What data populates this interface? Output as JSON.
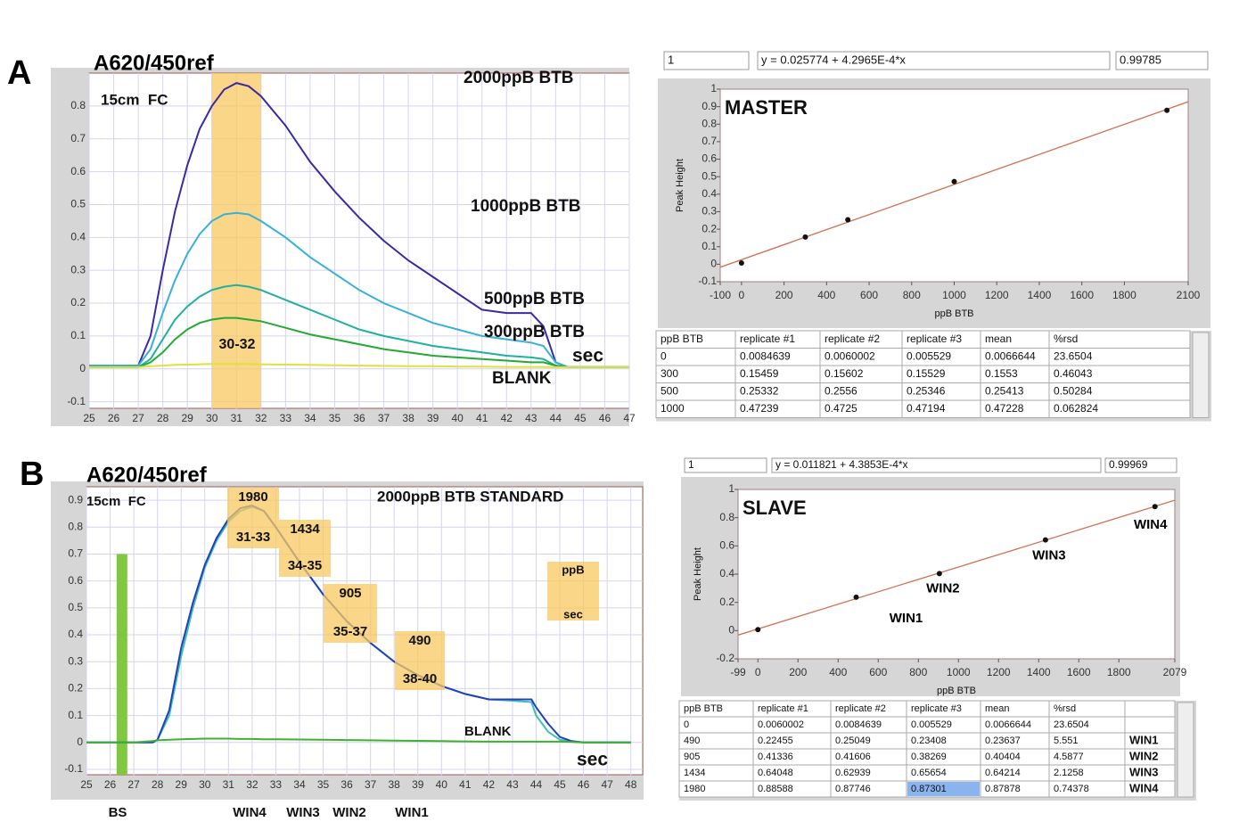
{
  "panel_labels": [
    "A",
    "B"
  ],
  "chart_data": [
    {
      "type": "line",
      "title": "A620/450ref",
      "annotations": [
        "15cm  FC",
        "sec"
      ],
      "x": [
        25,
        26,
        27,
        27.5,
        28,
        28.5,
        29,
        29.5,
        30,
        30.5,
        31,
        31.5,
        32,
        33,
        34,
        35,
        36,
        37,
        38,
        39,
        40,
        41,
        42,
        43,
        43.5,
        44,
        44.5,
        45,
        46,
        47
      ],
      "series": [
        {
          "name": "2000ppB BTB",
          "color": "#3a2aa0",
          "values": [
            0.01,
            0.01,
            0.01,
            0.1,
            0.3,
            0.48,
            0.62,
            0.73,
            0.8,
            0.85,
            0.87,
            0.86,
            0.83,
            0.74,
            0.63,
            0.54,
            0.46,
            0.39,
            0.33,
            0.28,
            0.23,
            0.18,
            0.17,
            0.17,
            0.13,
            0.02,
            0.005,
            0.005,
            0.005,
            0.005
          ]
        },
        {
          "name": "1000ppB BTB",
          "color": "#38b0d8",
          "values": [
            0.01,
            0.01,
            0.01,
            0.06,
            0.17,
            0.27,
            0.35,
            0.41,
            0.45,
            0.47,
            0.475,
            0.47,
            0.45,
            0.4,
            0.34,
            0.29,
            0.24,
            0.2,
            0.17,
            0.14,
            0.12,
            0.1,
            0.09,
            0.08,
            0.07,
            0.02,
            0.005,
            0.005,
            0.005,
            0.005
          ]
        },
        {
          "name": "500ppB BTB",
          "color": "#20b0a0",
          "values": [
            0.005,
            0.005,
            0.005,
            0.03,
            0.09,
            0.15,
            0.19,
            0.22,
            0.24,
            0.25,
            0.255,
            0.25,
            0.24,
            0.21,
            0.18,
            0.15,
            0.12,
            0.1,
            0.085,
            0.07,
            0.06,
            0.05,
            0.04,
            0.035,
            0.03,
            0.01,
            0.005,
            0.005,
            0.005,
            0.005
          ]
        },
        {
          "name": "300ppB BTB",
          "color": "#22aa33",
          "values": [
            0.005,
            0.005,
            0.005,
            0.02,
            0.05,
            0.09,
            0.12,
            0.14,
            0.15,
            0.155,
            0.155,
            0.15,
            0.145,
            0.125,
            0.105,
            0.09,
            0.075,
            0.06,
            0.05,
            0.04,
            0.035,
            0.03,
            0.025,
            0.02,
            0.02,
            0.01,
            0.005,
            0.005,
            0.005,
            0.005
          ]
        },
        {
          "name": "BLANK",
          "color": "#e0e040",
          "values": [
            0.005,
            0.005,
            0.005,
            0.008,
            0.01,
            0.012,
            0.013,
            0.014,
            0.015,
            0.015,
            0.015,
            0.015,
            0.014,
            0.013,
            0.012,
            0.011,
            0.01,
            0.009,
            0.008,
            0.008,
            0.007,
            0.007,
            0.006,
            0.006,
            0.006,
            0.005,
            0.005,
            0.005,
            0.005,
            0.005
          ]
        }
      ],
      "highlight": {
        "x": [
          30,
          32
        ],
        "label": "30-32",
        "color": "#f8c860"
      },
      "xlim": [
        25,
        47
      ],
      "xticks": [
        25,
        26,
        27,
        28,
        29,
        30,
        31,
        32,
        33,
        34,
        35,
        36,
        37,
        38,
        39,
        40,
        41,
        42,
        43,
        44,
        45,
        46,
        47
      ],
      "ylim": [
        -0.12,
        0.9
      ],
      "yticks": [
        -0.1,
        0,
        0.1,
        0.2,
        0.3,
        0.4,
        0.5,
        0.6,
        0.7,
        0.8
      ],
      "grid": true
    },
    {
      "type": "scatter",
      "title": "MASTER",
      "header": [
        1,
        "y = 0.025774 + 4.2965E-4*x",
        0.99785
      ],
      "x_label": "ppB BTB",
      "y_label": "Peak Height",
      "x": [
        0,
        300,
        500,
        1000,
        2000
      ],
      "y": [
        0.0066644,
        0.1553,
        0.25413,
        0.47228,
        0.87878
      ],
      "fit": {
        "intercept": 0.025774,
        "slope": 0.00042965,
        "color": "#d07050"
      },
      "xlim": [
        -100,
        2100
      ],
      "xticks": [
        -100,
        0,
        200,
        400,
        600,
        800,
        1000,
        1200,
        1400,
        1600,
        1800,
        2100
      ],
      "ylim": [
        -0.1,
        1
      ],
      "yticks": [
        -0.1,
        0,
        0.1,
        0.2,
        0.3,
        0.4,
        0.5,
        0.6,
        0.7,
        0.8,
        0.9,
        1
      ],
      "grid": false
    },
    {
      "type": "line",
      "title": "A620/450ref",
      "subtitle": "2000ppB BTB STANDARD",
      "annotations": [
        "15cm  FC",
        "sec"
      ],
      "x": [
        25,
        26,
        27,
        27.8,
        28,
        28.5,
        29,
        29.5,
        30,
        30.5,
        31,
        31.5,
        32,
        32.5,
        33,
        34,
        35,
        36,
        37,
        38,
        39,
        40,
        41,
        42,
        43,
        43.8,
        44,
        44.5,
        45,
        45.5,
        46,
        48
      ],
      "series": [
        {
          "color": "#40c0b0",
          "values": [
            0,
            0,
            0,
            0,
            0.01,
            0.1,
            0.32,
            0.5,
            0.65,
            0.75,
            0.82,
            0.86,
            0.875,
            0.86,
            0.8,
            0.67,
            0.55,
            0.45,
            0.37,
            0.3,
            0.25,
            0.21,
            0.18,
            0.16,
            0.155,
            0.15,
            0.1,
            0.04,
            0.01,
            0.003,
            0,
            0
          ]
        },
        {
          "color": "#2040c0",
          "values": [
            0,
            0,
            0,
            0,
            0.01,
            0.12,
            0.35,
            0.52,
            0.66,
            0.76,
            0.83,
            0.87,
            0.88,
            0.86,
            0.8,
            0.67,
            0.55,
            0.45,
            0.37,
            0.3,
            0.25,
            0.21,
            0.18,
            0.16,
            0.16,
            0.16,
            0.13,
            0.07,
            0.02,
            0.005,
            0,
            0
          ]
        },
        {
          "name": "BLANK",
          "color": "#40b030",
          "values": [
            0,
            0,
            0,
            0.005,
            0.008,
            0.01,
            0.012,
            0.013,
            0.014,
            0.014,
            0.014,
            0.013,
            0.013,
            0.012,
            0.012,
            0.011,
            0.01,
            0.009,
            0.008,
            0.007,
            0.006,
            0.005,
            0.004,
            0.003,
            0.003,
            0.003,
            0.003,
            0.003,
            0.003,
            0.002,
            0,
            0
          ]
        }
      ],
      "markers": [
        {
          "label": "BS",
          "x": 26.5,
          "height": 0.7,
          "color": "#80c840"
        }
      ],
      "windows": [
        {
          "label": "WIN4",
          "value": 1980,
          "range": "31-33"
        },
        {
          "label": "WIN3",
          "value": 1434,
          "range": "34-35"
        },
        {
          "label": "WIN2",
          "value": 905,
          "range": "35-37"
        },
        {
          "label": "WIN1",
          "value": 490,
          "range": "38-40"
        }
      ],
      "box_legend": [
        "ppB",
        "sec"
      ],
      "xlim": [
        25,
        48.5
      ],
      "xticks": [
        25,
        26,
        27,
        28,
        29,
        30,
        31,
        32,
        33,
        34,
        35,
        36,
        37,
        38,
        39,
        40,
        41,
        42,
        43,
        44,
        45,
        46,
        47,
        48
      ],
      "ylim": [
        -0.12,
        0.95
      ],
      "yticks": [
        -0.1,
        0,
        0.1,
        0.2,
        0.3,
        0.4,
        0.5,
        0.6,
        0.7,
        0.8,
        0.9
      ],
      "grid": true
    },
    {
      "type": "scatter",
      "title": "SLAVE",
      "header": [
        1,
        "y = 0.011821 + 4.3853E-4*x",
        0.99969
      ],
      "x_label": "ppB BTB",
      "y_label": "Peak Height",
      "x": [
        0,
        490,
        905,
        1434,
        1980
      ],
      "y": [
        0.0066644,
        0.23637,
        0.40404,
        0.64214,
        0.87878
      ],
      "point_labels": [
        null,
        "WIN1",
        "WIN2",
        "WIN3",
        "WIN4"
      ],
      "fit": {
        "intercept": 0.011821,
        "slope": 0.00043853,
        "color": "#d07050"
      },
      "xlim": [
        -99,
        2079
      ],
      "xticks": [
        -99,
        0,
        200,
        400,
        600,
        800,
        1000,
        1200,
        1400,
        1600,
        1800,
        2079
      ],
      "ylim": [
        -0.2,
        1
      ],
      "yticks": [
        -0.2,
        0,
        0.2,
        0.4,
        0.6,
        0.8,
        1
      ],
      "grid": false
    }
  ],
  "tables": [
    {
      "columns": [
        "ppB BTB",
        "replicate #1",
        "replicate #2",
        "replicate #3",
        "mean",
        "%rsd"
      ],
      "rows": [
        [
          "0",
          "0.0084639",
          "0.0060002",
          "0.005529",
          "0.0066644",
          "23.6504"
        ],
        [
          "300",
          "0.15459",
          "0.15602",
          "0.15529",
          "0.1553",
          "0.46043"
        ],
        [
          "500",
          "0.25332",
          "0.2556",
          "0.25346",
          "0.25413",
          "0.50284"
        ],
        [
          "1000",
          "0.47239",
          "0.4725",
          "0.47194",
          "0.47228",
          "0.062824"
        ]
      ]
    },
    {
      "columns": [
        "ppB BTB",
        "replicate #1",
        "replicate #2",
        "replicate #3",
        "mean",
        "%rsd"
      ],
      "rows": [
        [
          "0",
          "0.0060002",
          "0.0084639",
          "0.005529",
          "0.0066644",
          "23.6504",
          null
        ],
        [
          "490",
          "0.22455",
          "0.25049",
          "0.23408",
          "0.23637",
          "5.551",
          "WIN1"
        ],
        [
          "905",
          "0.41336",
          "0.41606",
          "0.38269",
          "0.40404",
          "4.5877",
          "WIN2"
        ],
        [
          "1434",
          "0.64048",
          "0.62939",
          "0.65654",
          "0.64214",
          "2.1258",
          "WIN3"
        ],
        [
          "1980",
          "0.88588",
          "0.87746",
          "0.87301",
          "0.87878",
          "0.74378",
          "WIN4"
        ]
      ],
      "selected_cell": [
        4,
        3
      ]
    }
  ]
}
